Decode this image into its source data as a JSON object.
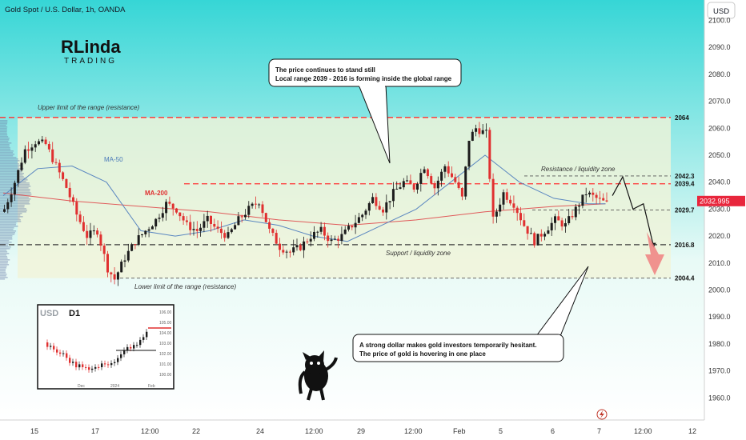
{
  "header": {
    "symbol_title": "Gold Spot / U.S. Dollar, 1h, OANDA",
    "currency_button": "USD"
  },
  "brand": {
    "logo_top": "RLinda",
    "logo_bottom": "TRADING"
  },
  "colors": {
    "background_top": "#36d6d6",
    "background_bottom": "#ffffff",
    "candle_up": "#1c1c1c",
    "candle_down": "#e03030",
    "range_zone": "#f1f4d8",
    "ma50": "#5a86c0",
    "ma200": "#e05a5a",
    "resistance_line": "#ff3030",
    "support_line": "#3c3c3c",
    "price_label_bg": "#e8263c",
    "arrow_fill": "#f08080"
  },
  "annotations": {
    "upper_limit": "Upper limit of the range (resistance)",
    "lower_limit": "Lower limit of the range (resistance)",
    "resistance_zone": "Resistance / liquidity zone",
    "support_zone": "Support / liquidity zone",
    "ma50_label": "MA-50",
    "ma200_label": "MA-200",
    "callout_top_line1": "The price continues to stand still",
    "callout_top_line2": "Local range 2039 - 2016 is forming inside the global range",
    "callout_bottom_line1": "A strong dollar makes gold investors temporarily hesitant.",
    "callout_bottom_line2": "The price of gold is hovering in one place"
  },
  "inset": {
    "symbol": "USD",
    "timeframe": "D1",
    "y_ticks": [
      "106.00",
      "105.00",
      "104.00",
      "103.00",
      "102.00",
      "101.00",
      "100.00"
    ],
    "x_ticks": [
      "Dec",
      "2024",
      "Feb"
    ]
  },
  "chart_data": {
    "type": "candlestick",
    "title": "Gold Spot / U.S. Dollar, 1h, OANDA",
    "ylim": [
      1950,
      2110
    ],
    "y_ticks": [
      1960,
      1970,
      1980,
      1990,
      2000,
      2010,
      2020,
      2030,
      2040,
      2050,
      2060,
      2070,
      2080,
      2090,
      2100
    ],
    "x_ticks": [
      "15",
      "17",
      "12:00",
      "22",
      "24",
      "12:00",
      "29",
      "12:00",
      "Feb",
      "5",
      "6",
      "7",
      "12:00",
      "12"
    ],
    "levels": [
      {
        "value": 2064.0,
        "label": "2064",
        "style": "resistance"
      },
      {
        "value": 2042.3,
        "label": "2042.3",
        "style": "dashed"
      },
      {
        "value": 2039.4,
        "label": "2039.4",
        "style": "resistance"
      },
      {
        "value": 2029.7,
        "label": "2029.7",
        "style": "dashed"
      },
      {
        "value": 2016.8,
        "label": "2016.8",
        "style": "support"
      },
      {
        "value": 2004.4,
        "label": "2004.4",
        "style": "dashed"
      }
    ],
    "current_price": {
      "value": 2032.995,
      "label": "2032.995"
    },
    "close_path": [
      [
        0,
        2030
      ],
      [
        3,
        2040
      ],
      [
        6,
        2052
      ],
      [
        9,
        2055
      ],
      [
        12,
        2054
      ],
      [
        15,
        2046
      ],
      [
        18,
        2038
      ],
      [
        21,
        2028
      ],
      [
        24,
        2020
      ],
      [
        27,
        2022
      ],
      [
        30,
        2008
      ],
      [
        32,
        2004
      ],
      [
        35,
        2012
      ],
      [
        38,
        2018
      ],
      [
        41,
        2022
      ],
      [
        44,
        2026
      ],
      [
        47,
        2032
      ],
      [
        50,
        2030
      ],
      [
        53,
        2024
      ],
      [
        56,
        2022
      ],
      [
        59,
        2026
      ],
      [
        62,
        2022
      ],
      [
        65,
        2020
      ],
      [
        68,
        2026
      ],
      [
        71,
        2030
      ],
      [
        74,
        2033
      ],
      [
        77,
        2022
      ],
      [
        80,
        2016
      ],
      [
        83,
        2014
      ],
      [
        86,
        2016
      ],
      [
        89,
        2020
      ],
      [
        92,
        2022
      ],
      [
        95,
        2018
      ],
      [
        98,
        2020
      ],
      [
        101,
        2024
      ],
      [
        104,
        2028
      ],
      [
        107,
        2034
      ],
      [
        110,
        2030
      ],
      [
        113,
        2036
      ],
      [
        116,
        2040
      ],
      [
        119,
        2038
      ],
      [
        122,
        2046
      ],
      [
        125,
        2038
      ],
      [
        128,
        2046
      ],
      [
        131,
        2040
      ],
      [
        133,
        2034
      ],
      [
        135,
        2056
      ],
      [
        137,
        2060
      ],
      [
        140,
        2058
      ],
      [
        142,
        2026
      ],
      [
        145,
        2036
      ],
      [
        148,
        2032
      ],
      [
        151,
        2024
      ],
      [
        154,
        2018
      ],
      [
        157,
        2022
      ],
      [
        160,
        2026
      ],
      [
        163,
        2024
      ],
      [
        166,
        2030
      ],
      [
        169,
        2036
      ],
      [
        172,
        2034
      ],
      [
        175,
        2032
      ]
    ],
    "ma50": [
      [
        0,
        2035
      ],
      [
        10,
        2045
      ],
      [
        20,
        2046
      ],
      [
        30,
        2040
      ],
      [
        40,
        2022
      ],
      [
        50,
        2020
      ],
      [
        60,
        2022
      ],
      [
        70,
        2026
      ],
      [
        80,
        2024
      ],
      [
        90,
        2020
      ],
      [
        100,
        2018
      ],
      [
        110,
        2024
      ],
      [
        120,
        2030
      ],
      [
        130,
        2040
      ],
      [
        140,
        2050
      ],
      [
        150,
        2040
      ],
      [
        160,
        2034
      ],
      [
        170,
        2032
      ],
      [
        175,
        2032
      ]
    ],
    "ma200": [
      [
        0,
        2036
      ],
      [
        20,
        2033
      ],
      [
        40,
        2031
      ],
      [
        60,
        2029
      ],
      [
        80,
        2026
      ],
      [
        100,
        2024
      ],
      [
        120,
        2026
      ],
      [
        140,
        2029
      ],
      [
        160,
        2031
      ],
      [
        175,
        2032
      ]
    ],
    "projection": [
      [
        177,
        2035
      ],
      [
        180,
        2042
      ],
      [
        183,
        2030
      ],
      [
        186,
        2032
      ],
      [
        189,
        2016
      ]
    ]
  }
}
